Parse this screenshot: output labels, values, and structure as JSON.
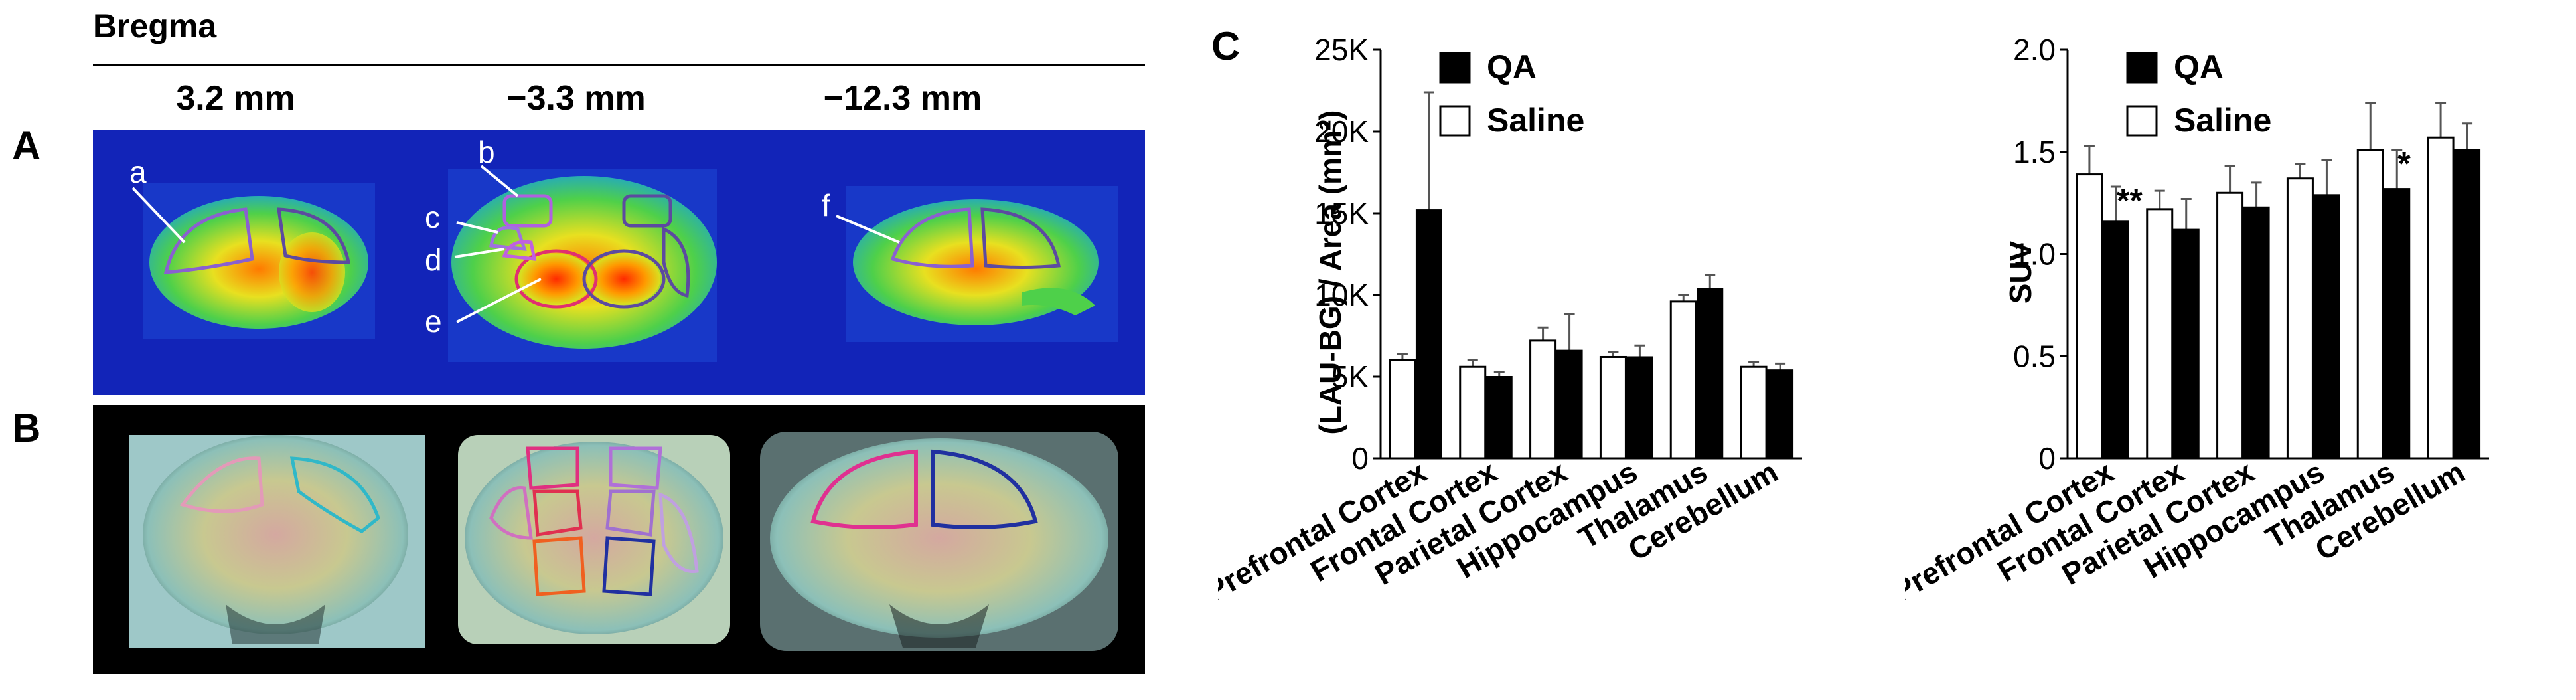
{
  "header": {
    "bregma": "Bregma",
    "positions": [
      "3.2 mm",
      "−3.3 mm",
      "−12.3 mm"
    ]
  },
  "panels": {
    "a": "A",
    "b": "B",
    "c": "C"
  },
  "region_labels": [
    "a",
    "b",
    "c",
    "d",
    "e",
    "f"
  ],
  "colors": {
    "background_blue": "#1224b8",
    "qa": "#000000",
    "saline": "#ffffff"
  },
  "chart_data": [
    {
      "type": "bar",
      "categories": [
        "Prefrontal Cortex",
        "Frontal Cortex",
        "Parietal Cortex",
        "Hippocampus",
        "Thalamus",
        "Cerebellum"
      ],
      "ylabel": "(LAU-BG) / Area (mm²)",
      "ylim": [
        0,
        25000
      ],
      "yticks": [
        0,
        5000,
        10000,
        15000,
        20000,
        25000
      ],
      "ytick_labels": [
        "0",
        "5K",
        "10K",
        "15K",
        "20K",
        "25K"
      ],
      "legend": [
        "QA",
        "Saline"
      ],
      "series": [
        {
          "name": "Saline",
          "values": [
            6000,
            5600,
            7200,
            6200,
            9600,
            5600
          ],
          "errors": [
            400,
            400,
            800,
            300,
            400,
            300
          ]
        },
        {
          "name": "QA",
          "values": [
            15200,
            5000,
            6600,
            6200,
            10400,
            5400
          ],
          "errors": [
            7200,
            300,
            2200,
            700,
            800,
            400
          ]
        }
      ],
      "annotations": []
    },
    {
      "type": "bar",
      "categories": [
        "Prefrontal Cortex",
        "Frontal Cortex",
        "Parietal Cortex",
        "Hippocampus",
        "Thalamus",
        "Cerebellum"
      ],
      "ylabel": "SUV",
      "ylim": [
        0,
        2.0
      ],
      "yticks": [
        0,
        0.5,
        1.0,
        1.5,
        2.0
      ],
      "ytick_labels": [
        "0",
        "0.5",
        "1.0",
        "1.5",
        "2.0"
      ],
      "legend": [
        "QA",
        "Saline"
      ],
      "series": [
        {
          "name": "Saline",
          "values": [
            1.39,
            1.22,
            1.3,
            1.37,
            1.51,
            1.57
          ],
          "errors": [
            0.14,
            0.09,
            0.13,
            0.07,
            0.23,
            0.17
          ]
        },
        {
          "name": "QA",
          "values": [
            1.16,
            1.12,
            1.23,
            1.29,
            1.32,
            1.51
          ],
          "errors": [
            0.17,
            0.15,
            0.12,
            0.17,
            0.19,
            0.13
          ]
        }
      ],
      "annotations": [
        {
          "category": "Prefrontal Cortex",
          "text": "**"
        },
        {
          "category": "Thalamus",
          "text": "*"
        }
      ]
    }
  ]
}
